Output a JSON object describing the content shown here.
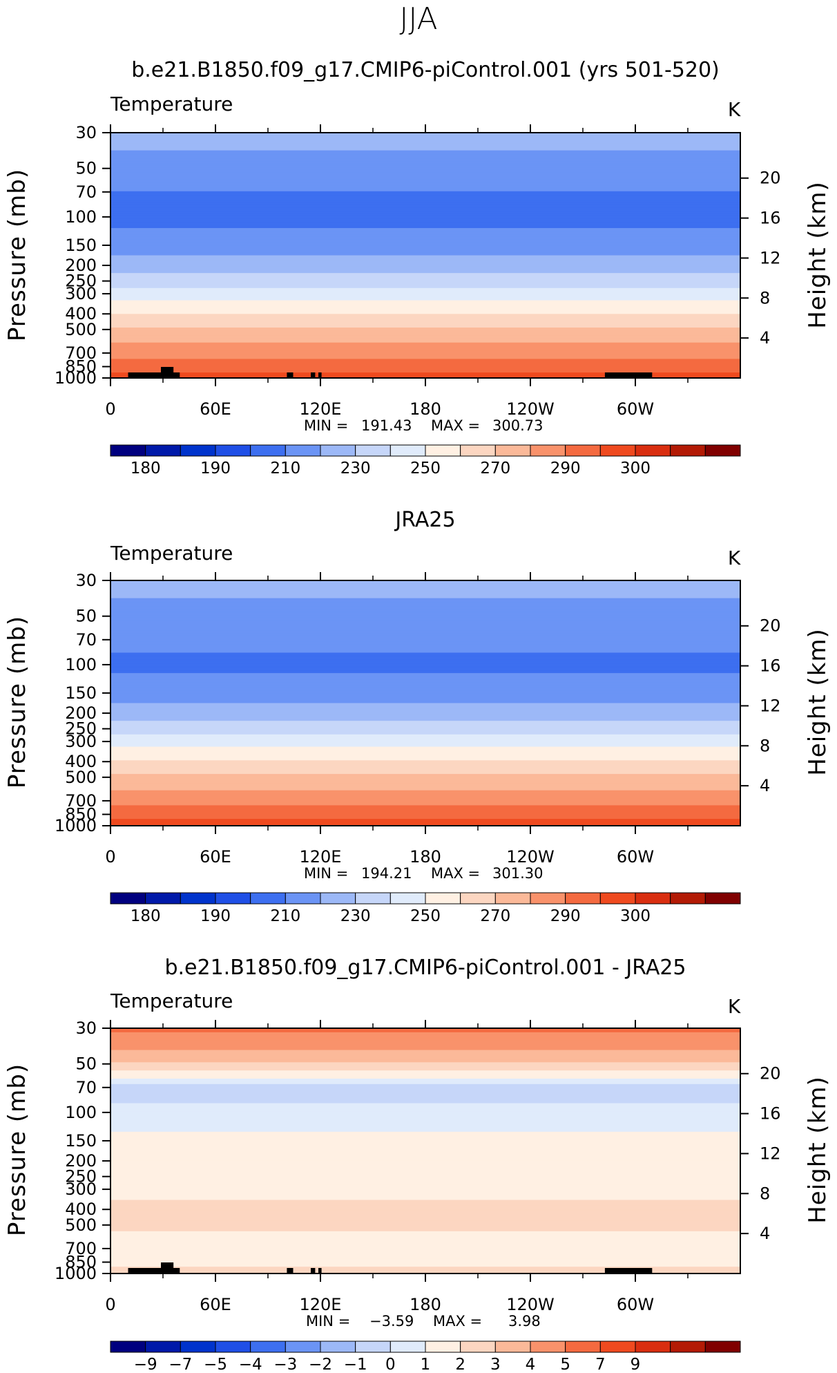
{
  "figure": {
    "season": "JJA",
    "units": "K"
  },
  "chart_data": [
    {
      "type": "heatmap",
      "title": "b.e21.B1850.f09_g17.CMIP6-piControl.001 (yrs 501-520)",
      "variable": "Temperature",
      "units": "K",
      "xlabel": "",
      "ylabel": "Pressure (mb)",
      "y2label": "Height (km)",
      "xticks": [
        "0",
        "60E",
        "120E",
        "180",
        "120W",
        "60W"
      ],
      "yticks": [
        30,
        50,
        70,
        100,
        150,
        200,
        250,
        300,
        400,
        500,
        700,
        850,
        1000
      ],
      "y2ticks": [
        4,
        8,
        12,
        16,
        20
      ],
      "ylim": [
        1000,
        30
      ],
      "xlim": [
        0,
        360
      ],
      "min_label": "MIN =",
      "min_value": "191.43",
      "max_label": "MAX =",
      "max_value": "300.73",
      "contour_levels": [
        175,
        180,
        185,
        190,
        195,
        200,
        210,
        220,
        230,
        240,
        250,
        260,
        270,
        280,
        290,
        295,
        300,
        305
      ],
      "colorbar_labels": [
        "180",
        "190",
        "210",
        "230",
        "250",
        "270",
        "290",
        "300"
      ],
      "profile": [
        {
          "p": 30,
          "value": 215
        },
        {
          "p": 50,
          "value": 205
        },
        {
          "p": 70,
          "value": 200
        },
        {
          "p": 100,
          "value": 197
        },
        {
          "p": 150,
          "value": 205
        },
        {
          "p": 200,
          "value": 215
        },
        {
          "p": 250,
          "value": 225
        },
        {
          "p": 300,
          "value": 235
        },
        {
          "p": 400,
          "value": 250
        },
        {
          "p": 500,
          "value": 262
        },
        {
          "p": 700,
          "value": 276
        },
        {
          "p": 850,
          "value": 286
        },
        {
          "p": 1000,
          "value": 293
        }
      ]
    },
    {
      "type": "heatmap",
      "title": "JRA25",
      "variable": "Temperature",
      "units": "K",
      "xlabel": "",
      "ylabel": "Pressure (mb)",
      "y2label": "Height (km)",
      "xticks": [
        "0",
        "60E",
        "120E",
        "180",
        "120W",
        "60W"
      ],
      "yticks": [
        30,
        50,
        70,
        100,
        150,
        200,
        250,
        300,
        400,
        500,
        700,
        850,
        1000
      ],
      "y2ticks": [
        4,
        8,
        12,
        16,
        20
      ],
      "ylim": [
        1000,
        30
      ],
      "xlim": [
        0,
        360
      ],
      "min_label": "MIN =",
      "min_value": "194.21",
      "max_label": "MAX =",
      "max_value": "301.30",
      "contour_levels": [
        175,
        180,
        185,
        190,
        195,
        200,
        210,
        220,
        230,
        240,
        250,
        260,
        270,
        280,
        290,
        295,
        300,
        305
      ],
      "colorbar_labels": [
        "180",
        "190",
        "210",
        "230",
        "250",
        "270",
        "290",
        "300"
      ],
      "profile": [
        {
          "p": 30,
          "value": 214
        },
        {
          "p": 50,
          "value": 206
        },
        {
          "p": 70,
          "value": 202
        },
        {
          "p": 100,
          "value": 198
        },
        {
          "p": 150,
          "value": 205
        },
        {
          "p": 200,
          "value": 215
        },
        {
          "p": 250,
          "value": 225
        },
        {
          "p": 300,
          "value": 236
        },
        {
          "p": 400,
          "value": 251
        },
        {
          "p": 500,
          "value": 262
        },
        {
          "p": 700,
          "value": 276
        },
        {
          "p": 850,
          "value": 287
        },
        {
          "p": 1000,
          "value": 294
        }
      ]
    },
    {
      "type": "heatmap",
      "title": "b.e21.B1850.f09_g17.CMIP6-piControl.001 - JRA25",
      "variable": "Temperature",
      "units": "K",
      "xlabel": "",
      "ylabel": "Pressure (mb)",
      "y2label": "Height (km)",
      "xticks": [
        "0",
        "60E",
        "120E",
        "180",
        "120W",
        "60W"
      ],
      "yticks": [
        30,
        50,
        70,
        100,
        150,
        200,
        250,
        300,
        400,
        500,
        700,
        850,
        1000
      ],
      "y2ticks": [
        4,
        8,
        12,
        16,
        20
      ],
      "ylim": [
        1000,
        30
      ],
      "xlim": [
        0,
        360
      ],
      "min_label": "MIN =",
      "min_value": "−3.59",
      "max_label": "MAX =",
      "max_value": "3.98",
      "contour_levels": [
        -11,
        -9,
        -8,
        -7,
        -6,
        -5,
        -4,
        -3,
        -2,
        -1,
        0,
        1,
        2,
        3,
        4,
        5,
        7,
        9,
        11
      ],
      "colorbar_labels": [
        "−9",
        "−7",
        "−5",
        "−4",
        "−3",
        "−2",
        "−1",
        "0",
        "1",
        "2",
        "3",
        "4",
        "5",
        "7",
        "9"
      ],
      "profile": [
        {
          "p": 30,
          "value": 3.2
        },
        {
          "p": 40,
          "value": 2.2
        },
        {
          "p": 50,
          "value": 0.8
        },
        {
          "p": 60,
          "value": -0.7
        },
        {
          "p": 70,
          "value": -2.6
        },
        {
          "p": 85,
          "value": -2.1
        },
        {
          "p": 100,
          "value": -1.6
        },
        {
          "p": 130,
          "value": -1.1
        },
        {
          "p": 150,
          "value": -0.4
        },
        {
          "p": 300,
          "value": -0.4
        },
        {
          "p": 400,
          "value": 0.4
        },
        {
          "p": 500,
          "value": 0.3
        },
        {
          "p": 600,
          "value": -0.3
        },
        {
          "p": 850,
          "value": -0.4
        },
        {
          "p": 950,
          "value": 0.3
        },
        {
          "p": 1000,
          "value": 0.6
        }
      ]
    }
  ],
  "colors": {
    "palette_bl_wh_re": [
      "#00007f",
      "#0019a9",
      "#0033cc",
      "#1f4fe6",
      "#3d6ff0",
      "#6b94f5",
      "#9cb8f7",
      "#c6d6f9",
      "#e0ebfb",
      "#fff0e3",
      "#fcd6c1",
      "#fbb999",
      "#f9926b",
      "#f46a40",
      "#ef4a1f",
      "#d92e10",
      "#b31a05",
      "#800000"
    ],
    "topography": "#000000"
  }
}
